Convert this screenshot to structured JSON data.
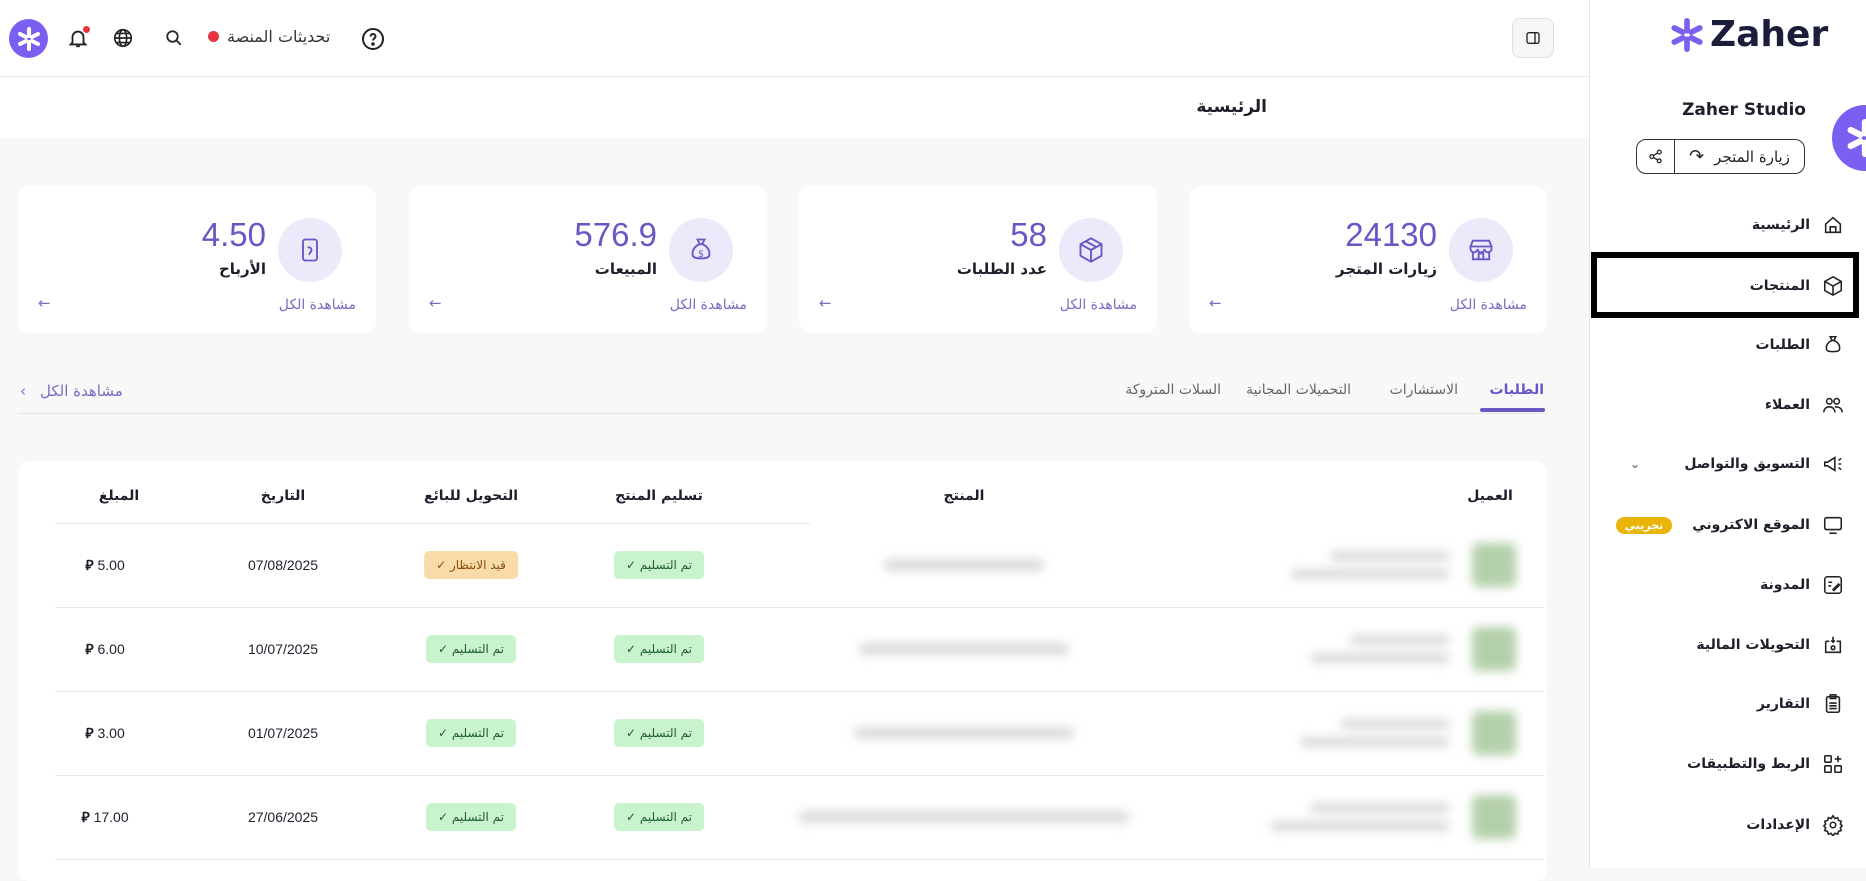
{
  "topbar": {
    "updates_label": "تحديثات المنصة",
    "colors": {
      "accent": "#6c55c4",
      "notif_dot": "#e8333e"
    }
  },
  "page_title": "الرئيسية",
  "sidebar": {
    "logo_text": "Zaher",
    "store_name": "Zaher Studio",
    "visit_store_label": "زيارة المتجر",
    "items": [
      {
        "label": "الرئيسية",
        "icon": "home-icon"
      },
      {
        "label": "المنتجات",
        "icon": "box-icon",
        "highlighted": true
      },
      {
        "label": "الطلبات",
        "icon": "money-bag-icon"
      },
      {
        "label": "العملاء",
        "icon": "users-icon"
      },
      {
        "label": "التسويق والتواصل",
        "icon": "megaphone-icon",
        "has_chevron": true
      },
      {
        "label": "الموقع الاكتروني",
        "icon": "monitor-icon",
        "badge": "تجريبي"
      },
      {
        "label": "المدونة",
        "icon": "edit-note-icon"
      },
      {
        "label": "التحويلات المالية",
        "icon": "transfer-icon"
      },
      {
        "label": "التقارير",
        "icon": "clipboard-icon"
      },
      {
        "label": "الربط والتطبيقات",
        "icon": "apps-icon"
      },
      {
        "label": "الإعدادات",
        "icon": "gear-icon"
      }
    ]
  },
  "stats": [
    {
      "value": "24130",
      "label": "زيارات المتجر",
      "more": "مشاهدة الكل",
      "icon": "store-icon"
    },
    {
      "value": "58",
      "label": "عدد الطلبات",
      "more": "مشاهدة الكل",
      "icon": "box-icon"
    },
    {
      "value": "576.9",
      "label": "المبيعات",
      "more": "مشاهدة الكل",
      "icon": "money-bag-icon"
    },
    {
      "value": "4.50",
      "label": "الأرباح",
      "more": "مشاهدة الكل",
      "icon": "phone-hand-icon"
    }
  ],
  "tabs": [
    {
      "label": "الطلبات",
      "active": true
    },
    {
      "label": "الاستشارات"
    },
    {
      "label": "التحميلات المجانية"
    },
    {
      "label": "السلات المتروكة"
    }
  ],
  "view_all": "مشاهدة الكل",
  "table": {
    "headers": {
      "customer": "العميل",
      "product": "المنتج",
      "delivery": "تسليم المنتج",
      "transfer": "التحويل للبائع",
      "date": "التاريخ",
      "amount": "المبلغ"
    },
    "currency": "⃁",
    "rows": [
      {
        "delivery": "تم التسليم ✓",
        "transfer": "قيد الانتظار ✓",
        "transfer_status": "pending",
        "date": "07/08/2025",
        "amount": "5.00"
      },
      {
        "delivery": "تم التسليم ✓",
        "transfer": "تم التسليم ✓",
        "transfer_status": "done",
        "date": "10/07/2025",
        "amount": "6.00"
      },
      {
        "delivery": "تم التسليم ✓",
        "transfer": "تم التسليم ✓",
        "transfer_status": "done",
        "date": "01/07/2025",
        "amount": "3.00"
      },
      {
        "delivery": "تم التسليم ✓",
        "transfer": "تم التسليم ✓",
        "transfer_status": "done",
        "date": "27/06/2025",
        "amount": "17.00"
      }
    ]
  }
}
